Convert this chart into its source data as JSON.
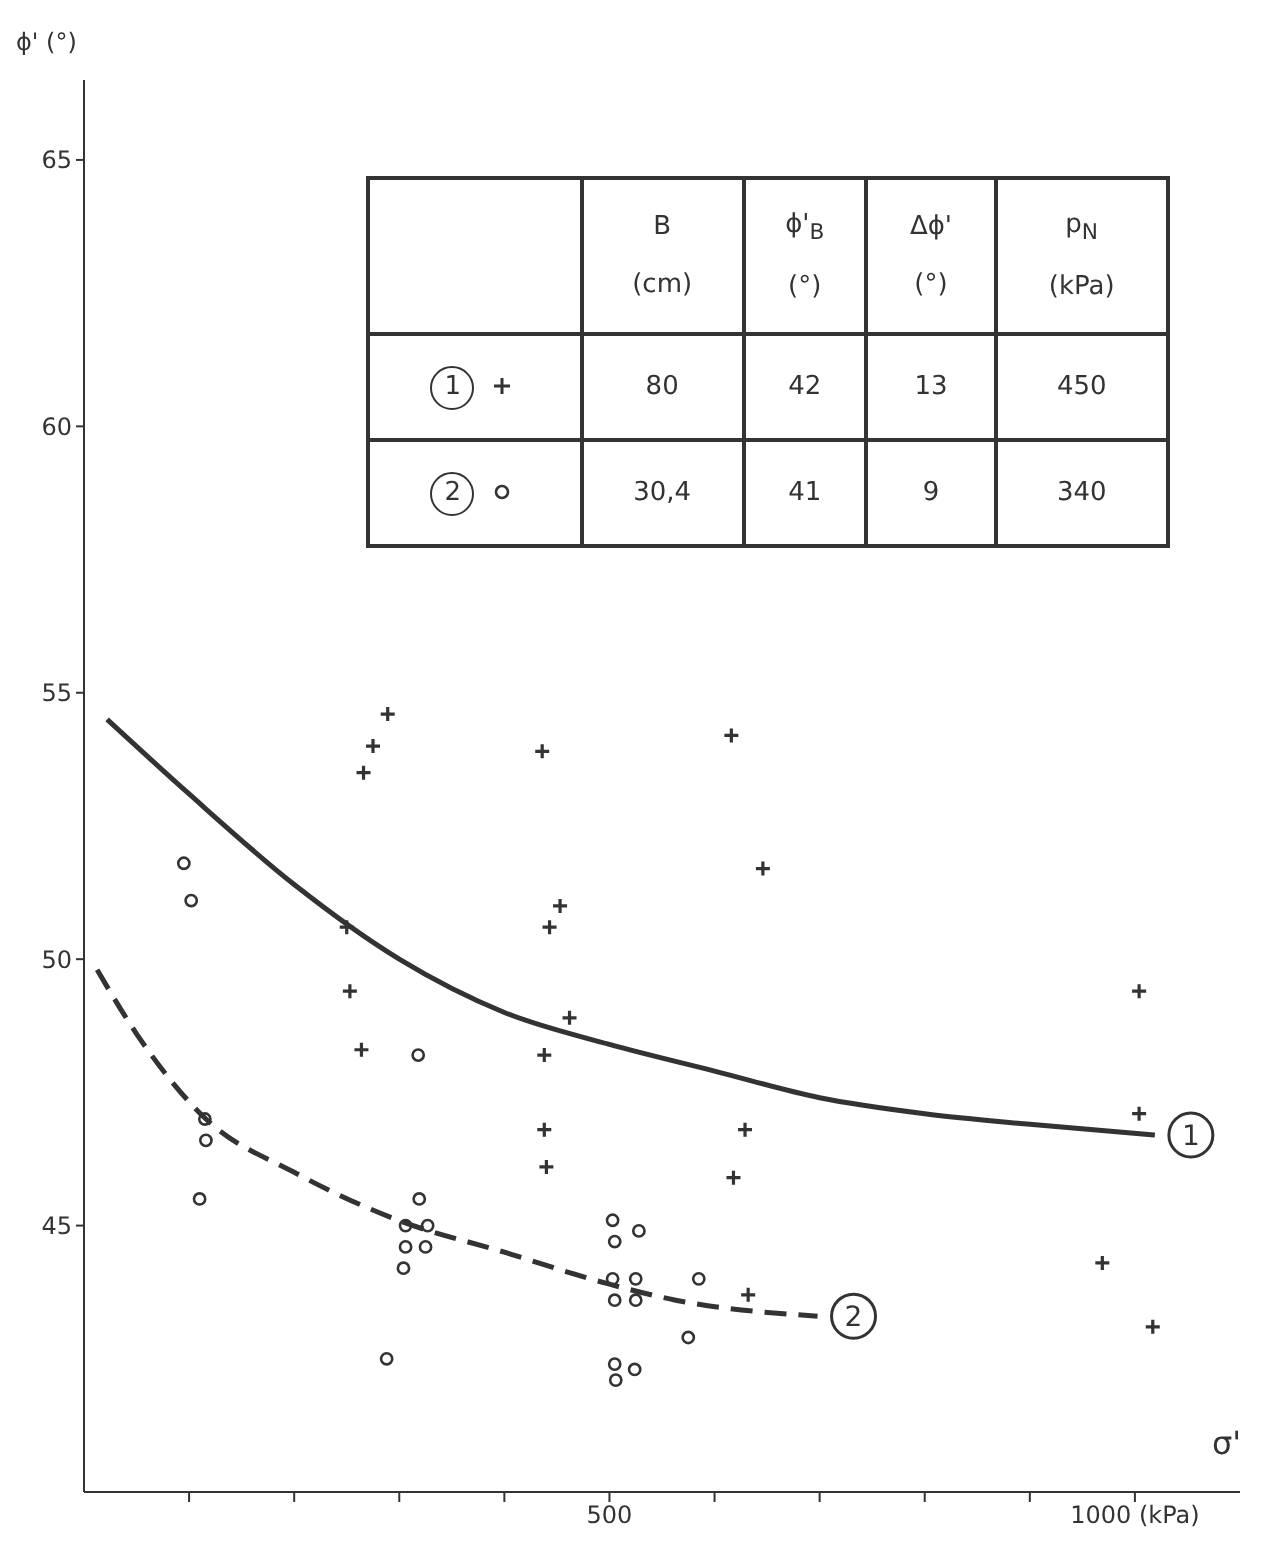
{
  "chart_data": {
    "type": "scatter",
    "xlabel": "σ'",
    "ylabel": "ϕ' (°)",
    "xlim": [
      0,
      1100
    ],
    "ylim": [
      40,
      66.5
    ],
    "xticks": [
      {
        "value": 100,
        "label": null
      },
      {
        "value": 200,
        "label": null
      },
      {
        "value": 300,
        "label": null
      },
      {
        "value": 400,
        "label": null
      },
      500,
      {
        "value": 600,
        "label": null
      },
      {
        "value": 700,
        "label": null
      },
      {
        "value": 800,
        "label": null
      },
      {
        "value": 900,
        "label": null
      },
      {
        "value": 1000,
        "label": "1000 (kPa)"
      }
    ],
    "yticks": [
      45,
      50,
      55,
      60,
      65
    ],
    "grid": false,
    "legend": "top left",
    "annotations": [
      "B",
      "(cm)",
      "ϕ'$_{B}$",
      "(°)",
      "Δϕ'",
      "(°)",
      "p$_{N}$",
      "(kPa)",
      "1",
      "80",
      "42",
      "13",
      "450",
      "2",
      "30,4",
      "41",
      "9",
      "340"
    ],
    "series": [
      {
        "type": "scatter",
        "marker": "cross",
        "color": "#333333",
        "x": [
          289,
          275,
          266,
          436,
          453,
          443,
          250,
          253,
          264,
          462,
          438,
          438,
          440,
          616,
          646,
          629,
          618,
          632,
          1004,
          1004,
          969,
          1017
        ],
        "values": [
          54.6,
          54.0,
          53.5,
          53.9,
          51.0,
          50.6,
          50.6,
          49.4,
          48.3,
          48.9,
          48.2,
          46.8,
          46.1,
          54.2,
          51.7,
          46.8,
          45.9,
          43.7,
          49.4,
          47.1,
          44.3,
          43.1
        ]
      },
      {
        "type": "scatter",
        "marker": "circle",
        "color": "#333333",
        "x": [
          95,
          102,
          115,
          116,
          110,
          318,
          319,
          306,
          327,
          306,
          325,
          304,
          288,
          503,
          528,
          505,
          503,
          525,
          505,
          525,
          585,
          575,
          505,
          524,
          506
        ],
        "values": [
          51.8,
          51.1,
          47.0,
          46.6,
          45.5,
          48.2,
          45.5,
          45.0,
          45.0,
          44.6,
          44.6,
          44.2,
          42.5,
          45.1,
          44.9,
          44.7,
          44.0,
          44.0,
          43.6,
          43.6,
          44.0,
          42.9,
          42.4,
          42.3,
          42.1
        ]
      },
      {
        "type": "line",
        "name": "1",
        "marker": "none",
        "line_style": "solid",
        "color": "#333333",
        "x": [
          22,
          100,
          200,
          300,
          400,
          500,
          600,
          700,
          800,
          900,
          1019
        ],
        "values": [
          54.5,
          53.1,
          51.4,
          50.0,
          49.0,
          48.4,
          47.9,
          47.4,
          47.1,
          46.9,
          46.7
        ]
      },
      {
        "type": "line",
        "name": "2",
        "marker": "none",
        "line_style": "dashed",
        "color": "#333333",
        "x": [
          12.5,
          50,
          116,
          200,
          299,
          400,
          500,
          563,
          698
        ],
        "values": [
          49.8,
          48.6,
          47.0,
          46.0,
          45.1,
          44.5,
          43.9,
          43.6,
          43.3
        ]
      }
    ]
  }
}
